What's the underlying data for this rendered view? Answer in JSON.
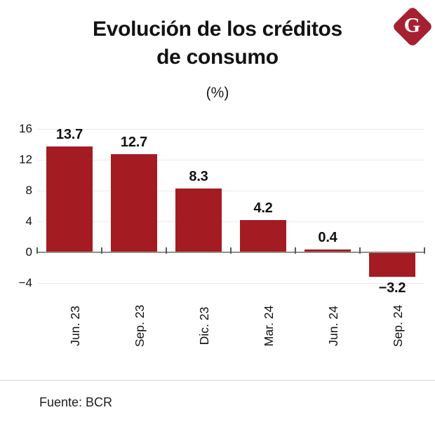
{
  "header": {
    "title_line1": "Evolución de los créditos",
    "title_line2": "de consumo",
    "subtitle": "(%)",
    "logo": {
      "letter": "G",
      "color": "#A52132"
    }
  },
  "chart_data": {
    "type": "bar",
    "title": "Evolución de los créditos de consumo",
    "subtitle": "(%)",
    "categories": [
      "Jun. 23",
      "Sep. 23",
      "Dic. 23",
      "Mar. 24",
      "Jun. 24",
      "Sep. 24"
    ],
    "values": [
      13.7,
      12.7,
      8.3,
      4.2,
      0.4,
      -3.2
    ],
    "value_labels": [
      "13.7",
      "12.7",
      "8.3",
      "4.2",
      "0.4",
      "−3.2"
    ],
    "yticks": [
      16,
      12,
      8,
      4,
      0,
      -4
    ],
    "ytick_labels": [
      "16",
      "12",
      "8",
      "4",
      "0",
      "−4"
    ],
    "ylim": [
      -6,
      17
    ],
    "xlabel": "",
    "ylabel": "",
    "grid": true,
    "legend": "none",
    "bar_color": "#A41C21"
  },
  "footer": {
    "source": "Fuente: BCR"
  }
}
